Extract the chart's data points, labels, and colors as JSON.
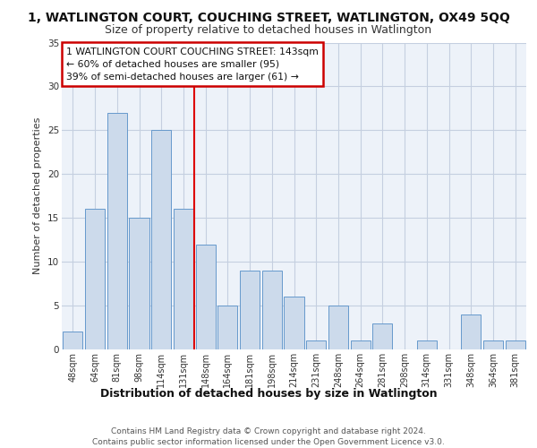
{
  "title": "1, WATLINGTON COURT, COUCHING STREET, WATLINGTON, OX49 5QQ",
  "subtitle": "Size of property relative to detached houses in Watlington",
  "xlabel": "Distribution of detached houses by size in Watlington",
  "ylabel": "Number of detached properties",
  "bar_color": "#ccdaeb",
  "bar_edge_color": "#6699cc",
  "categories": [
    "48sqm",
    "64sqm",
    "81sqm",
    "98sqm",
    "114sqm",
    "131sqm",
    "148sqm",
    "164sqm",
    "181sqm",
    "198sqm",
    "214sqm",
    "231sqm",
    "248sqm",
    "264sqm",
    "281sqm",
    "298sqm",
    "314sqm",
    "331sqm",
    "348sqm",
    "364sqm",
    "381sqm"
  ],
  "values": [
    2,
    16,
    27,
    15,
    25,
    16,
    12,
    5,
    9,
    9,
    6,
    1,
    5,
    1,
    3,
    0,
    1,
    0,
    4,
    1,
    1
  ],
  "ylim": [
    0,
    35
  ],
  "yticks": [
    0,
    5,
    10,
    15,
    20,
    25,
    30,
    35
  ],
  "vline_index": 6,
  "vline_color": "#dd0000",
  "annotation_text": "1 WATLINGTON COURT COUCHING STREET: 143sqm\n← 60% of detached houses are smaller (95)\n39% of semi-detached houses are larger (61) →",
  "annotation_box_color": "#ffffff",
  "annotation_box_edge": "#cc0000",
  "bg_color": "#edf2f9",
  "footer1": "Contains HM Land Registry data © Crown copyright and database right 2024.",
  "footer2": "Contains public sector information licensed under the Open Government Licence v3.0."
}
